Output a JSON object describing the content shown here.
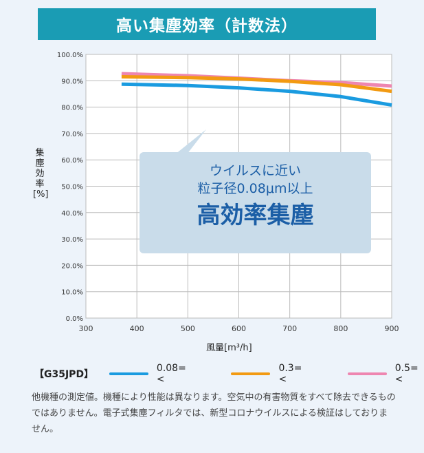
{
  "header": {
    "title": "高い集塵効率（計数法）"
  },
  "chart_data": {
    "type": "line",
    "xlabel": "風量[m³/h]",
    "ylabel": "集塵効率[%]",
    "xlim": [
      300,
      900
    ],
    "ylim": [
      0,
      100
    ],
    "grid": true,
    "xticks": [
      "300",
      "400",
      "500",
      "600",
      "700",
      "800",
      "900"
    ],
    "yticks": [
      "0.0%",
      "10.0%",
      "20.0%",
      "30.0%",
      "40.0%",
      "50.0%",
      "60.0%",
      "70.0%",
      "80.0%",
      "90.0%",
      "100.0%"
    ],
    "legend_title": "【G35JPD】",
    "legend_placement": "bottom",
    "series": [
      {
        "name": "0.08=<",
        "color": "#1a9be0",
        "x": [
          370,
          500,
          600,
          700,
          800,
          900
        ],
        "y": [
          88.7,
          88.2,
          87.3,
          86.0,
          84.0,
          80.8
        ]
      },
      {
        "name": "0.3=<",
        "color": "#f29a12",
        "x": [
          370,
          500,
          600,
          700,
          800,
          900
        ],
        "y": [
          91.5,
          91.2,
          90.7,
          89.8,
          88.5,
          86.0
        ]
      },
      {
        "name": "0.5=<",
        "color": "#ee86b0",
        "x": [
          370,
          500,
          600,
          700,
          800,
          900
        ],
        "y": [
          92.7,
          91.9,
          91.0,
          90.0,
          89.3,
          88.0
        ]
      }
    ]
  },
  "callout": {
    "line1": "ウイルスに近い",
    "line2": "粒子径0.08μm以上",
    "line3": "高効率集塵"
  },
  "note": "他機種の測定値。機種により性能は異なります。空気中の有害物質をすべて除去できるものではありません。電子式集塵フィルタでは、新型コロナウイルスによる検証はしておりません。"
}
